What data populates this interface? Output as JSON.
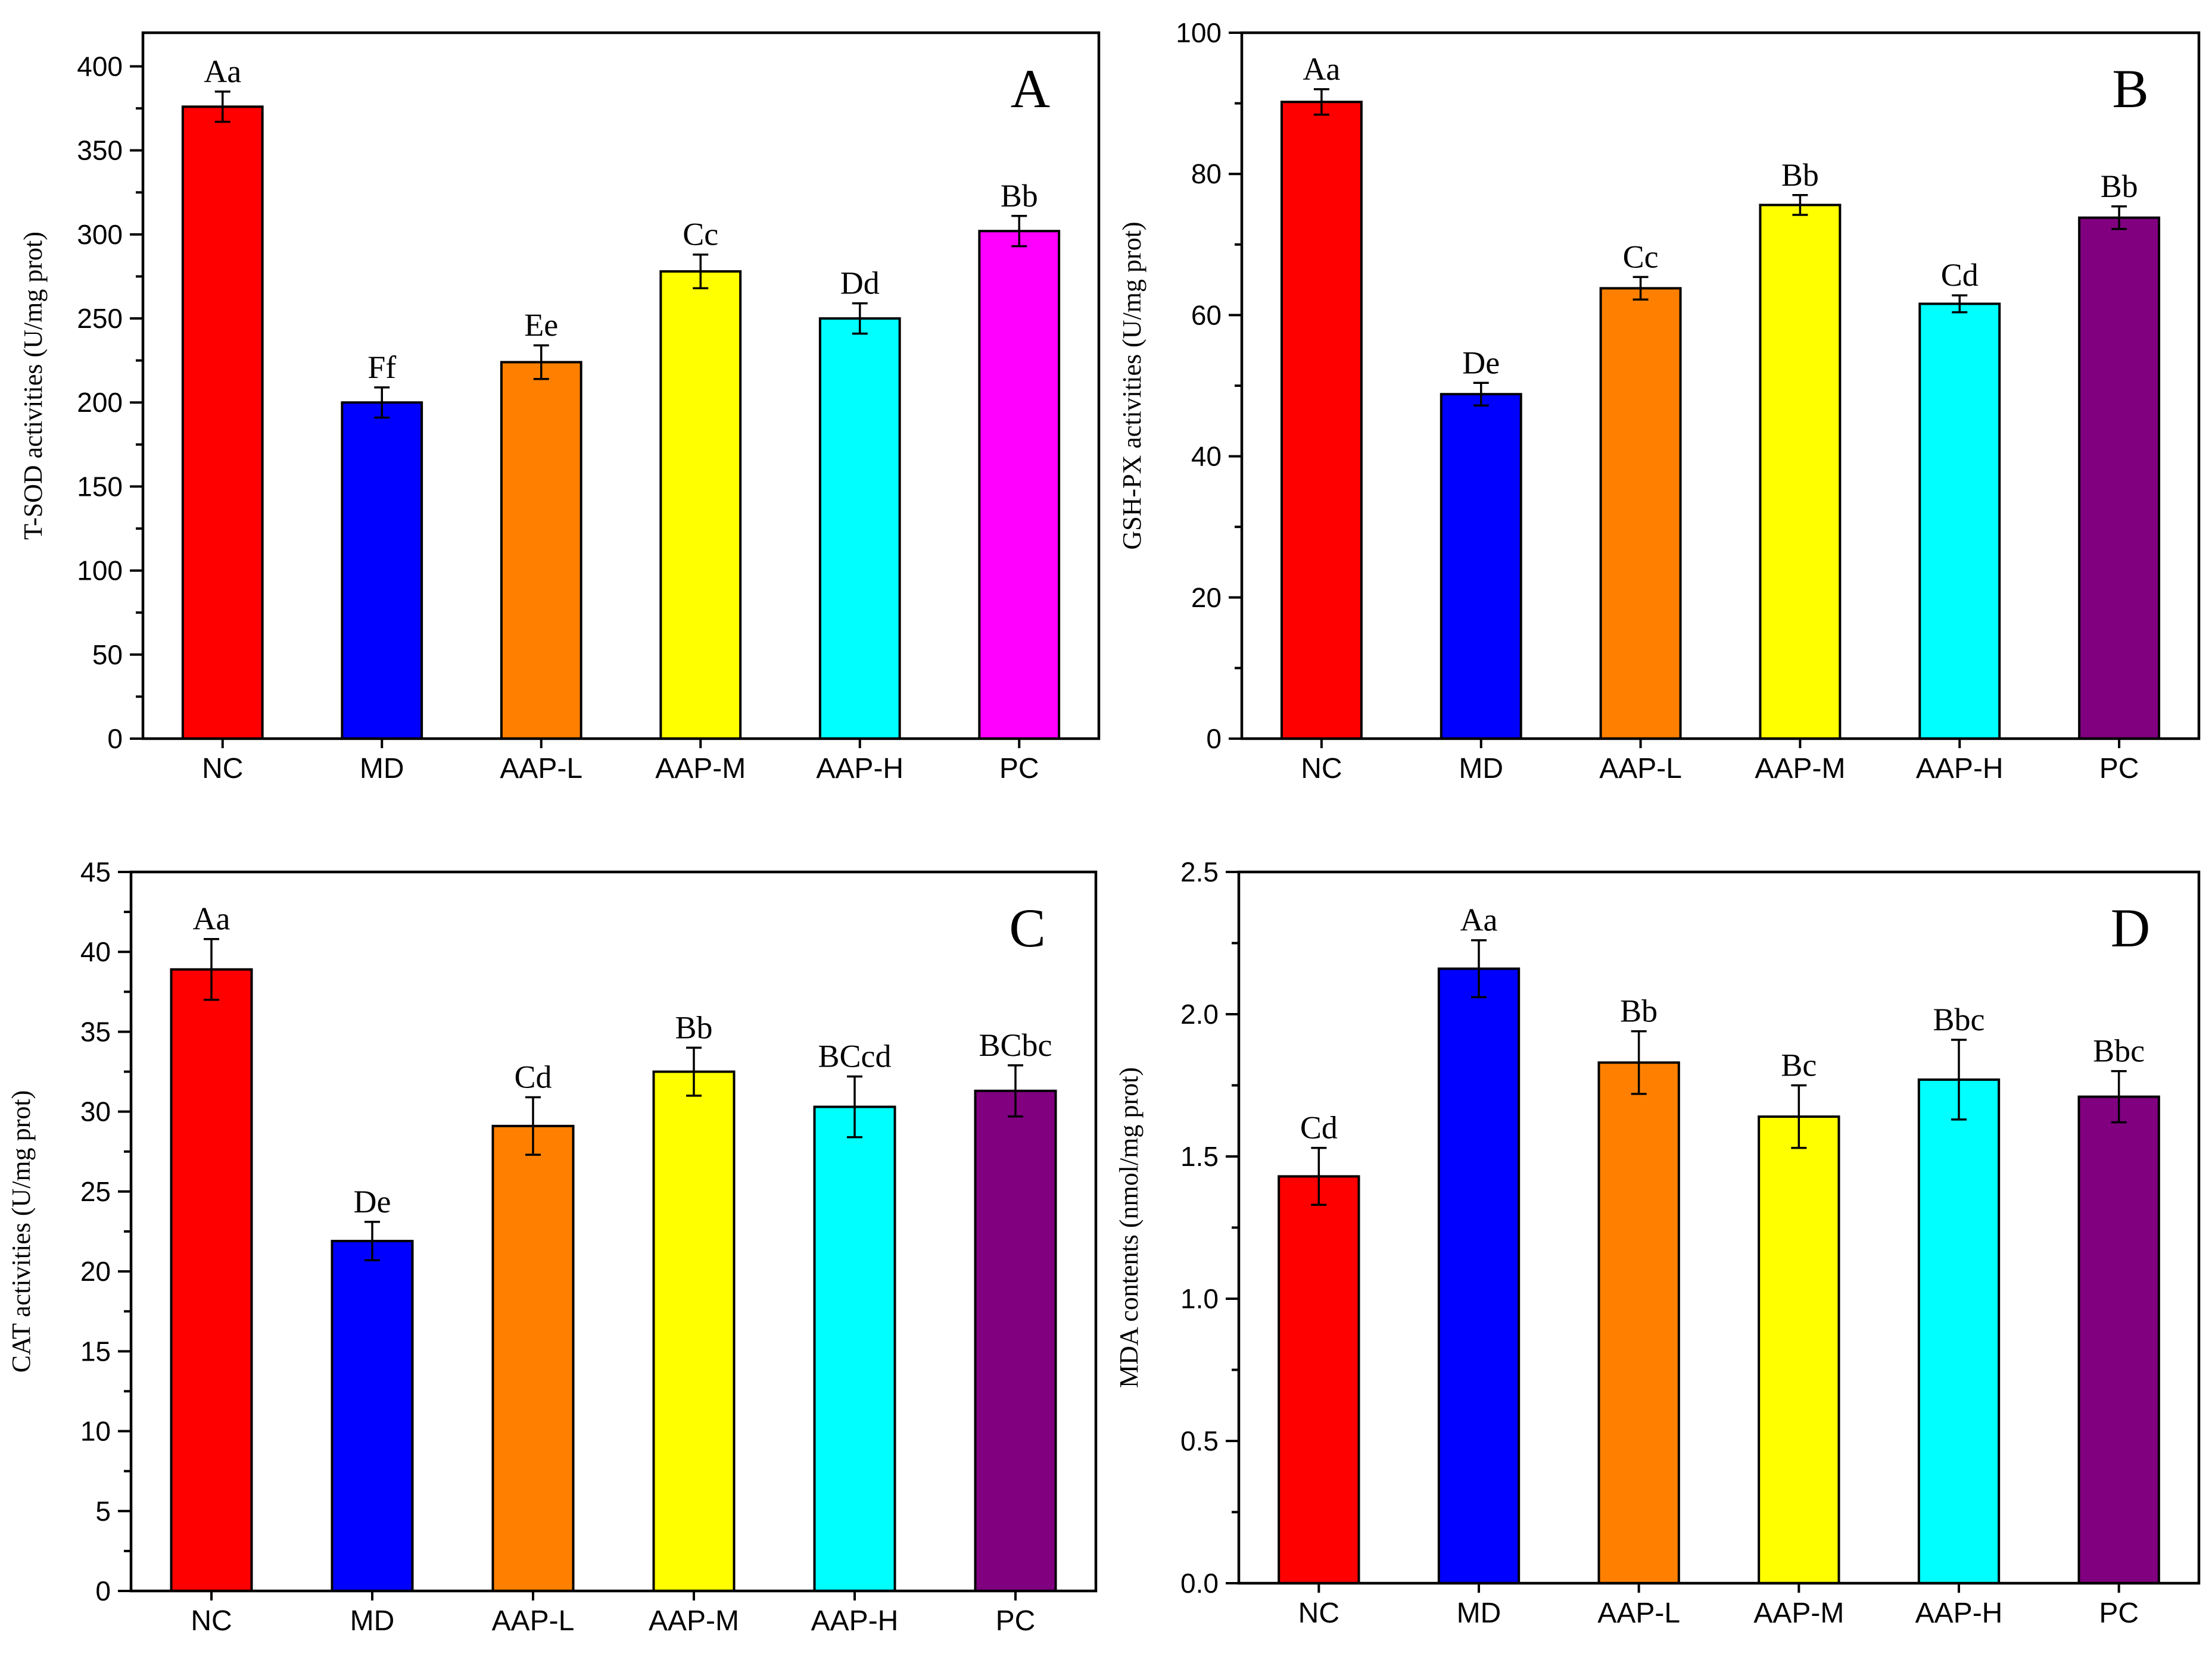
{
  "chart_data": [
    {
      "type": "bar",
      "panel_label": "A",
      "ylabel": "T-SOD activities (U/mg prot)",
      "ylim": [
        0,
        420
      ],
      "yticks": [
        0,
        50,
        100,
        150,
        200,
        250,
        300,
        350,
        400
      ],
      "ytick_labels": [
        "0",
        "50",
        "100",
        "150",
        "200",
        "250",
        "300",
        "350",
        "400"
      ],
      "categories": [
        "NC",
        "MD",
        "AAP-L",
        "AAP-M",
        "AAP-H",
        "PC"
      ],
      "values": [
        376,
        200,
        224,
        278,
        250,
        302
      ],
      "errors": [
        9,
        9,
        10,
        10,
        9,
        9
      ],
      "significance": [
        "Aa",
        "Ff",
        "Ee",
        "Cc",
        "Dd",
        "Bb"
      ],
      "colors": [
        "#ff0000",
        "#0000ff",
        "#ff8000",
        "#ffff00",
        "#00ffff",
        "#ff00ff"
      ]
    },
    {
      "type": "bar",
      "panel_label": "B",
      "ylabel": "GSH-PX activities (U/mg prot)",
      "ylim": [
        0,
        100
      ],
      "yticks": [
        0,
        20,
        40,
        60,
        80,
        100
      ],
      "ytick_labels": [
        "0",
        "20",
        "40",
        "60",
        "80",
        "100"
      ],
      "categories": [
        "NC",
        "MD",
        "AAP-L",
        "AAP-M",
        "AAP-H",
        "PC"
      ],
      "values": [
        90.2,
        48.8,
        63.8,
        75.6,
        61.6,
        73.8
      ],
      "errors": [
        1.8,
        1.6,
        1.6,
        1.4,
        1.2,
        1.6
      ],
      "significance": [
        "Aa",
        "De",
        "Cc",
        "Bb",
        "Cd",
        "Bb"
      ],
      "colors": [
        "#ff0000",
        "#0000ff",
        "#ff8000",
        "#ffff00",
        "#00ffff",
        "#800080"
      ]
    },
    {
      "type": "bar",
      "panel_label": "C",
      "ylabel": "CAT activities (U/mg prot)",
      "ylim": [
        0,
        45
      ],
      "yticks": [
        0,
        5,
        10,
        15,
        20,
        25,
        30,
        35,
        40,
        45
      ],
      "ytick_labels": [
        "0",
        "5",
        "10",
        "15",
        "20",
        "25",
        "30",
        "35",
        "40",
        "45"
      ],
      "categories": [
        "NC",
        "MD",
        "AAP-L",
        "AAP-M",
        "AAP-H",
        "PC"
      ],
      "values": [
        38.9,
        21.9,
        29.1,
        32.5,
        30.3,
        31.3
      ],
      "errors": [
        1.9,
        1.2,
        1.8,
        1.5,
        1.9,
        1.6
      ],
      "significance": [
        "Aa",
        "De",
        "Cd",
        "Bb",
        "BCcd",
        "BCbc"
      ],
      "colors": [
        "#ff0000",
        "#0000ff",
        "#ff8000",
        "#ffff00",
        "#00ffff",
        "#800080"
      ]
    },
    {
      "type": "bar",
      "panel_label": "D",
      "ylabel": "MDA contents (nmol/mg prot)",
      "ylim": [
        0,
        2.5
      ],
      "yticks": [
        0,
        0.5,
        1.0,
        1.5,
        2.0,
        2.5
      ],
      "ytick_labels": [
        "0.0",
        "0.5",
        "1.0",
        "1.5",
        "2.0",
        "2.5"
      ],
      "categories": [
        "NC",
        "MD",
        "AAP-L",
        "AAP-M",
        "AAP-H",
        "PC"
      ],
      "values": [
        1.43,
        2.16,
        1.83,
        1.64,
        1.77,
        1.71
      ],
      "errors": [
        0.1,
        0.1,
        0.11,
        0.11,
        0.14,
        0.09
      ],
      "significance": [
        "Cd",
        "Aa",
        "Bb",
        "Bc",
        "Bbc",
        "Bbc"
      ],
      "colors": [
        "#ff0000",
        "#0000ff",
        "#ff8000",
        "#ffff00",
        "#00ffff",
        "#800080"
      ]
    }
  ]
}
